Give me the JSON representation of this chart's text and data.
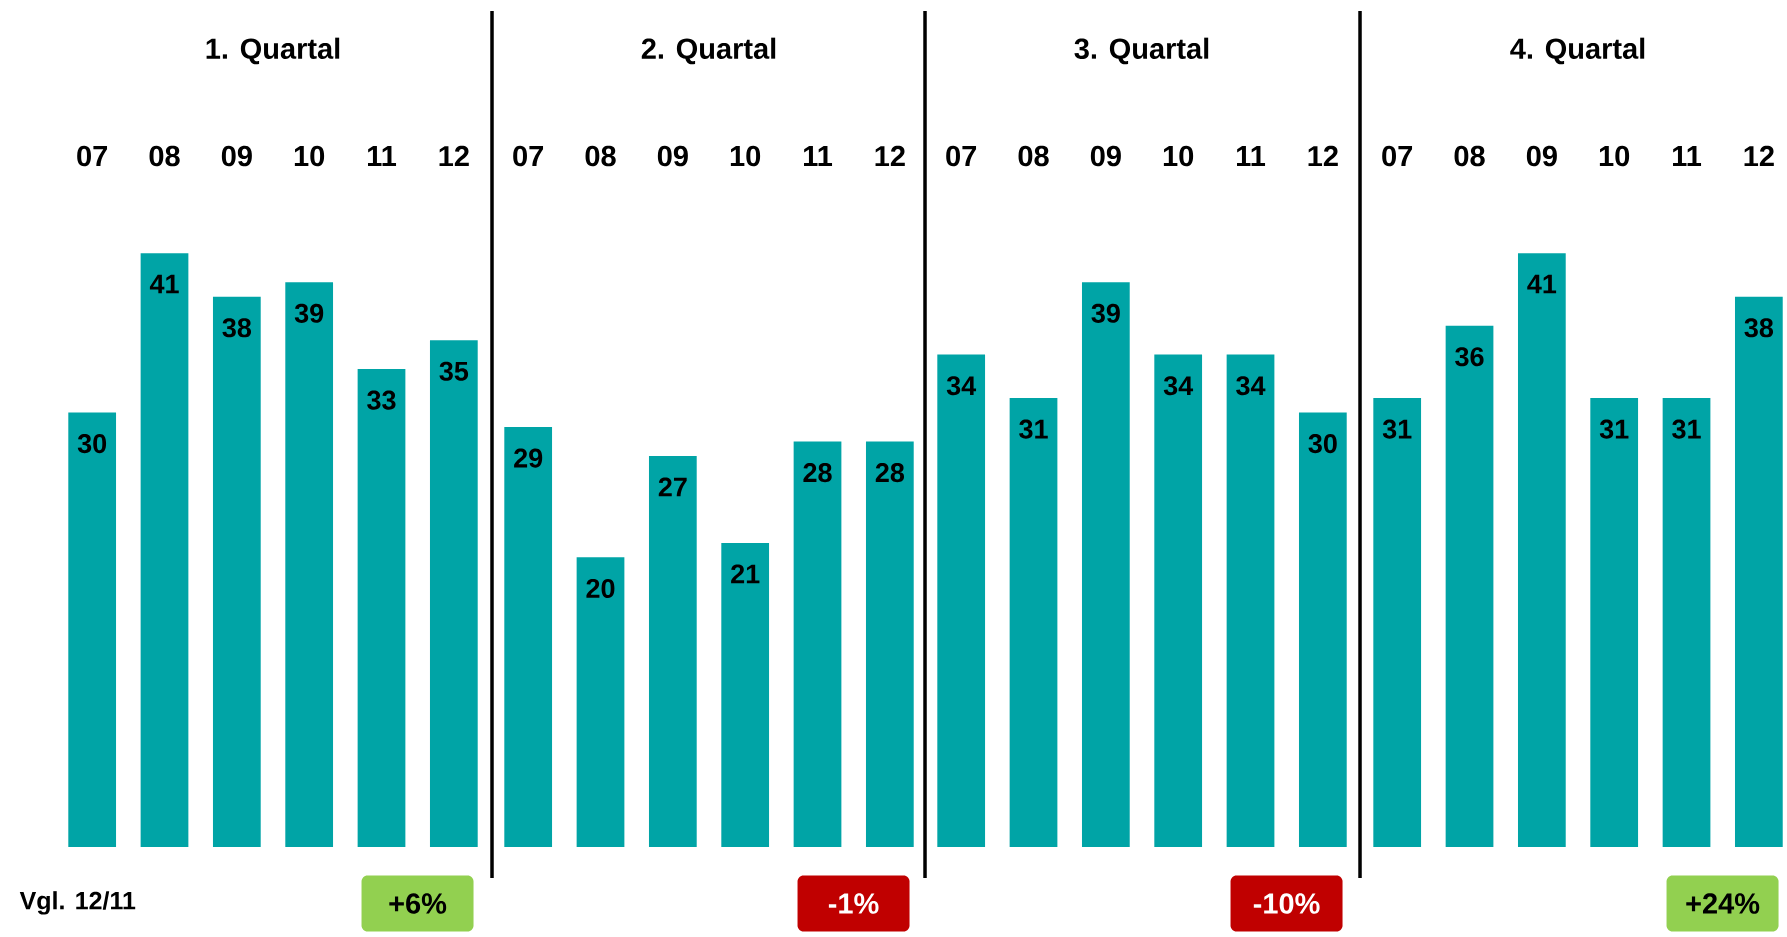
{
  "chart_data": [
    {
      "type": "bar",
      "title": "1. Quartal",
      "categories": [
        "07",
        "08",
        "09",
        "10",
        "11",
        "12"
      ],
      "values": [
        30,
        41,
        38,
        39,
        33,
        35
      ],
      "color": "#00a4a6",
      "data_labels": true,
      "tick_labels": "x",
      "annotations": [
        "Vgl. 12/11",
        "+6%"
      ]
    },
    {
      "type": "bar",
      "title": "2. Quartal",
      "categories": [
        "07",
        "08",
        "09",
        "10",
        "11",
        "12"
      ],
      "values": [
        29,
        20,
        27,
        21,
        28,
        28
      ],
      "color": "#00a4a6",
      "data_labels": true,
      "tick_labels": "x",
      "annotations": [
        "-1%"
      ]
    },
    {
      "type": "bar",
      "title": "3. Quartal",
      "categories": [
        "07",
        "08",
        "09",
        "10",
        "11",
        "12"
      ],
      "values": [
        34,
        31,
        39,
        34,
        34,
        30
      ],
      "color": "#00a4a6",
      "data_labels": true,
      "tick_labels": "x",
      "annotations": [
        "-10%"
      ]
    },
    {
      "type": "bar",
      "title": "4. Quartal",
      "categories": [
        "07",
        "08",
        "09",
        "10",
        "11",
        "12"
      ],
      "values": [
        31,
        36,
        41,
        31,
        31,
        38
      ],
      "color": "#00a4a6",
      "data_labels": true,
      "tick_labels": "x",
      "annotations": [
        "+24%"
      ]
    }
  ]
}
